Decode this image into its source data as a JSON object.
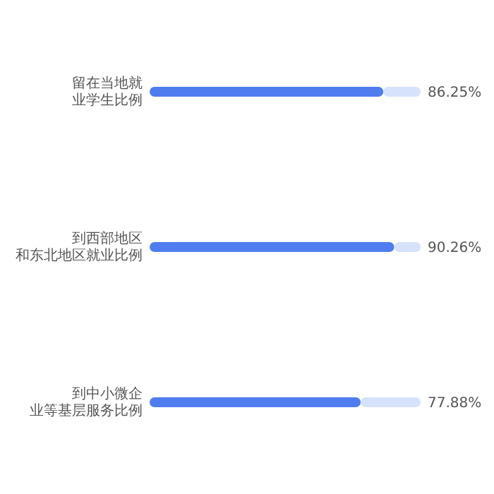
{
  "chart_data": {
    "type": "bar",
    "orientation": "horizontal",
    "categories": [
      "留在当地就业学生比例",
      "到西部地区和东北地区就业比例",
      "到中小微企业等基层服务比例"
    ],
    "xlim": [
      0,
      100
    ],
    "tick_labels": "y",
    "stacked": true,
    "series": [
      {
        "color": "#4f7df0",
        "values": [
          86.25,
          90.26,
          77.88
        ],
        "value_labels": [
          "86.25%",
          "90.26%",
          "77.88%"
        ]
      },
      {
        "color": "#d6e2fb",
        "values": [
          13.75,
          9.74,
          22.12
        ]
      }
    ]
  }
}
